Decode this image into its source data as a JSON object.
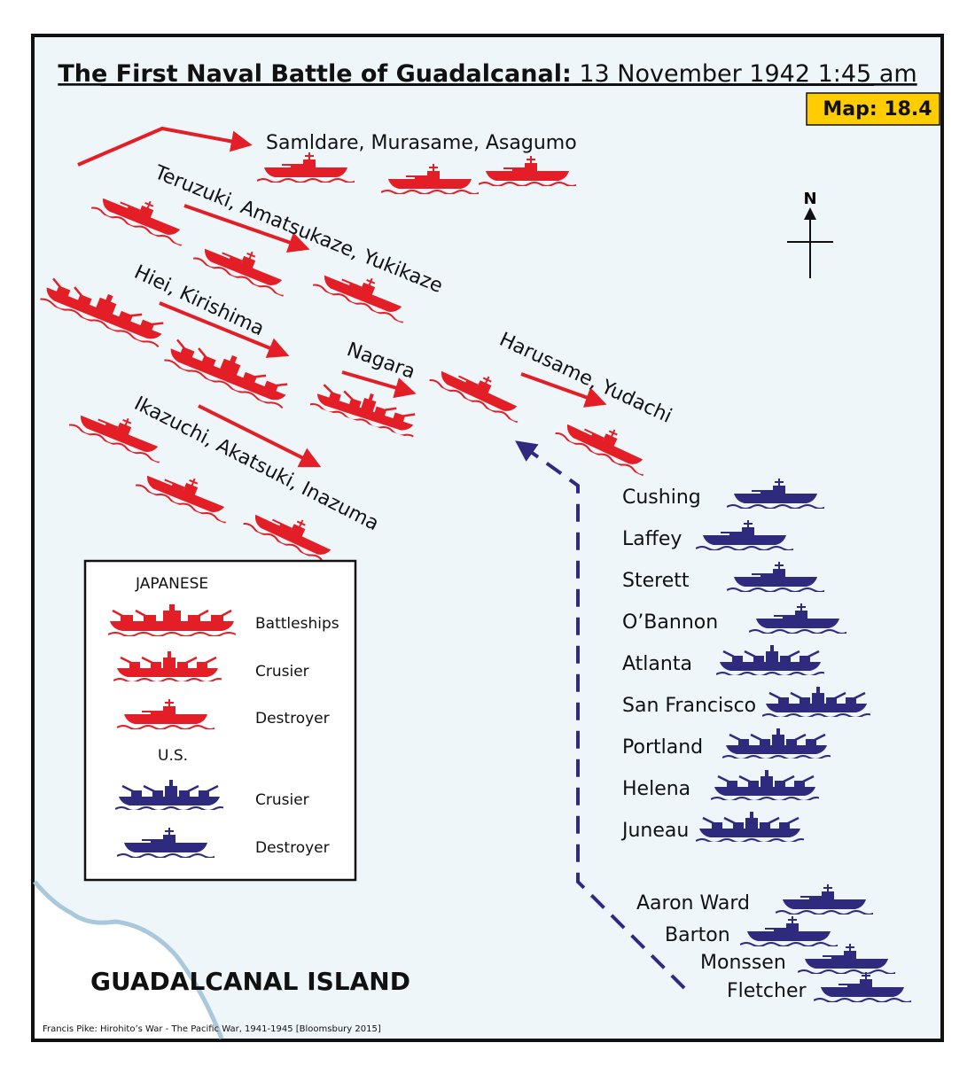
{
  "title": {
    "bold": "The First Naval Battle of Guadalcanal:",
    "rest": " 13 November 1942 1:45 am"
  },
  "map_badge": "Map: 18.4",
  "compass": "N",
  "colors": {
    "japanese": "#e41e26",
    "us": "#2e2a7e",
    "sea": "#eef6fa",
    "badge": "#ffcc00"
  },
  "japanese_groups": [
    {
      "label": "Samldare, Murasame, Asagumo"
    },
    {
      "label": "Teruzuki, Amatsukaze, Yukikaze"
    },
    {
      "label": "Hiei, Kirishima"
    },
    {
      "label": "Nagara"
    },
    {
      "label": "Harusame, Yudachi"
    },
    {
      "label": "Ikazuchi, Akatsuki, Inazuma"
    }
  ],
  "us_ships": [
    {
      "name": "Cushing",
      "type": "destroyer"
    },
    {
      "name": "Laffey",
      "type": "destroyer"
    },
    {
      "name": "Sterett",
      "type": "destroyer"
    },
    {
      "name": "O’Bannon",
      "type": "destroyer"
    },
    {
      "name": "Atlanta",
      "type": "cruiser"
    },
    {
      "name": "San Francisco",
      "type": "cruiser"
    },
    {
      "name": "Portland",
      "type": "cruiser"
    },
    {
      "name": "Helena",
      "type": "cruiser"
    },
    {
      "name": "Juneau",
      "type": "cruiser"
    },
    {
      "name": "Aaron Ward",
      "type": "destroyer"
    },
    {
      "name": "Barton",
      "type": "destroyer"
    },
    {
      "name": "Monssen",
      "type": "destroyer"
    },
    {
      "name": "Fletcher",
      "type": "destroyer"
    }
  ],
  "legend": {
    "japanese_heading": "JAPANESE",
    "battleships": "Battleships",
    "cruiser_jp": "Crusier",
    "destroyer_jp": "Destroyer",
    "us_heading": "U.S.",
    "cruiser_us": "Crusier",
    "destroyer_us": "Destroyer"
  },
  "island_label": "GUADALCANAL ISLAND",
  "citation": "Francis Pike:  Hirohito’s War - The Pacific War, 1941-1945   [Bloomsbury 2015]"
}
